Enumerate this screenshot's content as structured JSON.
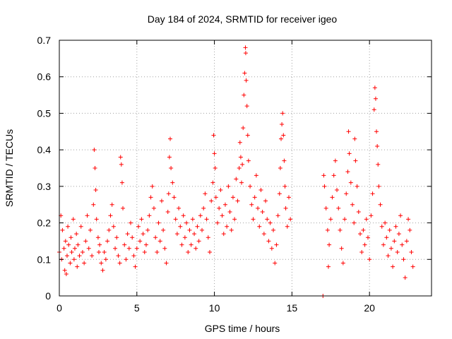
{
  "chart_data": {
    "type": "scatter",
    "title": "Day 184 of 2024, SRMTID for receiver igeo",
    "xlabel": "GPS time / hours",
    "ylabel": "SRMTID / TECUs",
    "xlim": [
      0,
      24
    ],
    "ylim": [
      0,
      0.7
    ],
    "x_ticks": [
      0,
      5,
      10,
      15,
      20
    ],
    "x_tick_labels": [
      "0",
      "5",
      "10",
      "15",
      "20"
    ],
    "y_ticks": [
      0,
      0.1,
      0.2,
      0.3,
      0.4,
      0.5,
      0.6,
      0.7
    ],
    "y_tick_labels": [
      "0",
      "0.1",
      "0.2",
      "0.3",
      "0.4",
      "0.5",
      "0.6",
      "0.7"
    ],
    "grid": true,
    "legend": "none",
    "marker": "plus",
    "series": [
      {
        "name": "SRMTID",
        "color": "#ff0000",
        "points": [
          [
            0.0,
            0.12
          ],
          [
            0.1,
            0.22
          ],
          [
            0.15,
            0.1
          ],
          [
            0.2,
            0.18
          ],
          [
            0.3,
            0.13
          ],
          [
            0.35,
            0.07
          ],
          [
            0.4,
            0.15
          ],
          [
            0.45,
            0.06
          ],
          [
            0.5,
            0.11
          ],
          [
            0.55,
            0.19
          ],
          [
            0.6,
            0.14
          ],
          [
            0.7,
            0.09
          ],
          [
            0.75,
            0.16
          ],
          [
            0.8,
            0.12
          ],
          [
            0.9,
            0.21
          ],
          [
            0.95,
            0.1
          ],
          [
            1.0,
            0.13
          ],
          [
            1.1,
            0.17
          ],
          [
            1.15,
            0.08
          ],
          [
            1.2,
            0.14
          ],
          [
            1.3,
            0.11
          ],
          [
            1.4,
            0.19
          ],
          [
            1.5,
            0.12
          ],
          [
            1.6,
            0.09
          ],
          [
            1.7,
            0.15
          ],
          [
            1.8,
            0.22
          ],
          [
            1.9,
            0.13
          ],
          [
            2.0,
            0.18
          ],
          [
            2.1,
            0.11
          ],
          [
            2.2,
            0.25
          ],
          [
            2.25,
            0.4
          ],
          [
            2.3,
            0.35
          ],
          [
            2.35,
            0.29
          ],
          [
            2.4,
            0.21
          ],
          [
            2.5,
            0.16
          ],
          [
            2.55,
            0.12
          ],
          [
            2.6,
            0.14
          ],
          [
            2.7,
            0.09
          ],
          [
            2.8,
            0.07
          ],
          [
            2.9,
            0.12
          ],
          [
            3.0,
            0.1
          ],
          [
            3.1,
            0.15
          ],
          [
            3.2,
            0.18
          ],
          [
            3.3,
            0.22
          ],
          [
            3.4,
            0.25
          ],
          [
            3.5,
            0.19
          ],
          [
            3.6,
            0.13
          ],
          [
            3.7,
            0.16
          ],
          [
            3.8,
            0.11
          ],
          [
            3.9,
            0.09
          ],
          [
            3.95,
            0.38
          ],
          [
            4.0,
            0.36
          ],
          [
            4.05,
            0.31
          ],
          [
            4.1,
            0.24
          ],
          [
            4.2,
            0.14
          ],
          [
            4.3,
            0.1
          ],
          [
            4.4,
            0.17
          ],
          [
            4.5,
            0.13
          ],
          [
            4.6,
            0.2
          ],
          [
            4.7,
            0.16
          ],
          [
            4.8,
            0.11
          ],
          [
            4.9,
            0.08
          ],
          [
            5.0,
            0.13
          ],
          [
            5.1,
            0.19
          ],
          [
            5.2,
            0.15
          ],
          [
            5.3,
            0.21
          ],
          [
            5.4,
            0.17
          ],
          [
            5.5,
            0.12
          ],
          [
            5.6,
            0.14
          ],
          [
            5.7,
            0.18
          ],
          [
            5.8,
            0.22
          ],
          [
            5.9,
            0.27
          ],
          [
            6.0,
            0.3
          ],
          [
            6.1,
            0.24
          ],
          [
            6.2,
            0.16
          ],
          [
            6.3,
            0.12
          ],
          [
            6.4,
            0.2
          ],
          [
            6.5,
            0.15
          ],
          [
            6.6,
            0.26
          ],
          [
            6.7,
            0.18
          ],
          [
            6.8,
            0.13
          ],
          [
            6.9,
            0.09
          ],
          [
            7.0,
            0.23
          ],
          [
            7.05,
            0.28
          ],
          [
            7.1,
            0.38
          ],
          [
            7.15,
            0.43
          ],
          [
            7.2,
            0.35
          ],
          [
            7.3,
            0.31
          ],
          [
            7.4,
            0.27
          ],
          [
            7.5,
            0.21
          ],
          [
            7.6,
            0.17
          ],
          [
            7.7,
            0.24
          ],
          [
            7.8,
            0.19
          ],
          [
            7.9,
            0.14
          ],
          [
            8.0,
            0.22
          ],
          [
            8.1,
            0.16
          ],
          [
            8.2,
            0.2
          ],
          [
            8.3,
            0.12
          ],
          [
            8.4,
            0.18
          ],
          [
            8.5,
            0.14
          ],
          [
            8.6,
            0.21
          ],
          [
            8.7,
            0.17
          ],
          [
            8.8,
            0.13
          ],
          [
            8.9,
            0.19
          ],
          [
            9.0,
            0.15
          ],
          [
            9.1,
            0.22
          ],
          [
            9.2,
            0.18
          ],
          [
            9.3,
            0.24
          ],
          [
            9.4,
            0.28
          ],
          [
            9.5,
            0.21
          ],
          [
            9.6,
            0.16
          ],
          [
            9.7,
            0.12
          ],
          [
            9.8,
            0.26
          ],
          [
            9.9,
            0.31
          ],
          [
            9.95,
            0.44
          ],
          [
            10.0,
            0.39
          ],
          [
            10.05,
            0.35
          ],
          [
            10.1,
            0.27
          ],
          [
            10.2,
            0.2
          ],
          [
            10.3,
            0.24
          ],
          [
            10.4,
            0.29
          ],
          [
            10.5,
            0.22
          ],
          [
            10.6,
            0.17
          ],
          [
            10.7,
            0.25
          ],
          [
            10.8,
            0.19
          ],
          [
            10.9,
            0.3
          ],
          [
            11.0,
            0.23
          ],
          [
            11.1,
            0.18
          ],
          [
            11.2,
            0.27
          ],
          [
            11.3,
            0.21
          ],
          [
            11.4,
            0.32
          ],
          [
            11.5,
            0.26
          ],
          [
            11.6,
            0.35
          ],
          [
            11.65,
            0.42
          ],
          [
            11.7,
            0.38
          ],
          [
            11.75,
            0.31
          ],
          [
            11.8,
            0.36
          ],
          [
            11.85,
            0.46
          ],
          [
            11.9,
            0.55
          ],
          [
            11.95,
            0.61
          ],
          [
            12.0,
            0.68
          ],
          [
            12.02,
            0.665
          ],
          [
            12.05,
            0.59
          ],
          [
            12.1,
            0.52
          ],
          [
            12.15,
            0.44
          ],
          [
            12.2,
            0.37
          ],
          [
            12.3,
            0.3
          ],
          [
            12.4,
            0.25
          ],
          [
            12.5,
            0.21
          ],
          [
            12.6,
            0.27
          ],
          [
            12.7,
            0.33
          ],
          [
            12.8,
            0.24
          ],
          [
            12.9,
            0.19
          ],
          [
            13.0,
            0.29
          ],
          [
            13.1,
            0.23
          ],
          [
            13.2,
            0.17
          ],
          [
            13.3,
            0.26
          ],
          [
            13.4,
            0.21
          ],
          [
            13.5,
            0.15
          ],
          [
            13.6,
            0.2
          ],
          [
            13.7,
            0.13
          ],
          [
            13.8,
            0.18
          ],
          [
            13.9,
            0.09
          ],
          [
            14.0,
            0.14
          ],
          [
            14.1,
            0.22
          ],
          [
            14.2,
            0.28
          ],
          [
            14.25,
            0.35
          ],
          [
            14.3,
            0.43
          ],
          [
            14.35,
            0.47
          ],
          [
            14.4,
            0.5
          ],
          [
            14.45,
            0.44
          ],
          [
            14.5,
            0.37
          ],
          [
            14.55,
            0.3
          ],
          [
            14.6,
            0.24
          ],
          [
            14.7,
            0.19
          ],
          [
            14.8,
            0.27
          ],
          [
            14.9,
            0.21
          ],
          [
            17.0,
            0.0
          ],
          [
            17.05,
            0.33
          ],
          [
            17.1,
            0.3
          ],
          [
            17.2,
            0.24
          ],
          [
            17.3,
            0.18
          ],
          [
            17.35,
            0.08
          ],
          [
            17.4,
            0.14
          ],
          [
            17.5,
            0.21
          ],
          [
            17.6,
            0.27
          ],
          [
            17.7,
            0.33
          ],
          [
            17.8,
            0.37
          ],
          [
            17.9,
            0.29
          ],
          [
            18.0,
            0.24
          ],
          [
            18.1,
            0.18
          ],
          [
            18.2,
            0.13
          ],
          [
            18.3,
            0.09
          ],
          [
            18.4,
            0.21
          ],
          [
            18.5,
            0.28
          ],
          [
            18.6,
            0.34
          ],
          [
            18.65,
            0.45
          ],
          [
            18.7,
            0.39
          ],
          [
            18.8,
            0.31
          ],
          [
            18.9,
            0.25
          ],
          [
            19.0,
            0.2
          ],
          [
            19.05,
            0.43
          ],
          [
            19.1,
            0.37
          ],
          [
            19.2,
            0.3
          ],
          [
            19.3,
            0.23
          ],
          [
            19.4,
            0.17
          ],
          [
            19.5,
            0.12
          ],
          [
            19.6,
            0.18
          ],
          [
            19.7,
            0.14
          ],
          [
            19.8,
            0.21
          ],
          [
            19.9,
            0.16
          ],
          [
            20.0,
            0.1
          ],
          [
            20.1,
            0.22
          ],
          [
            20.2,
            0.28
          ],
          [
            20.3,
            0.51
          ],
          [
            20.35,
            0.57
          ],
          [
            20.4,
            0.54
          ],
          [
            20.45,
            0.45
          ],
          [
            20.5,
            0.41
          ],
          [
            20.55,
            0.36
          ],
          [
            20.6,
            0.3
          ],
          [
            20.7,
            0.25
          ],
          [
            20.8,
            0.19
          ],
          [
            20.9,
            0.14
          ],
          [
            21.0,
            0.2
          ],
          [
            21.1,
            0.16
          ],
          [
            21.2,
            0.11
          ],
          [
            21.3,
            0.18
          ],
          [
            21.4,
            0.13
          ],
          [
            21.5,
            0.08
          ],
          [
            21.6,
            0.15
          ],
          [
            21.7,
            0.19
          ],
          [
            21.8,
            0.12
          ],
          [
            21.9,
            0.17
          ],
          [
            22.0,
            0.22
          ],
          [
            22.1,
            0.14
          ],
          [
            22.2,
            0.1
          ],
          [
            22.3,
            0.05
          ],
          [
            22.4,
            0.15
          ],
          [
            22.5,
            0.21
          ],
          [
            22.6,
            0.18
          ],
          [
            22.7,
            0.12
          ],
          [
            22.8,
            0.08
          ]
        ]
      }
    ]
  }
}
